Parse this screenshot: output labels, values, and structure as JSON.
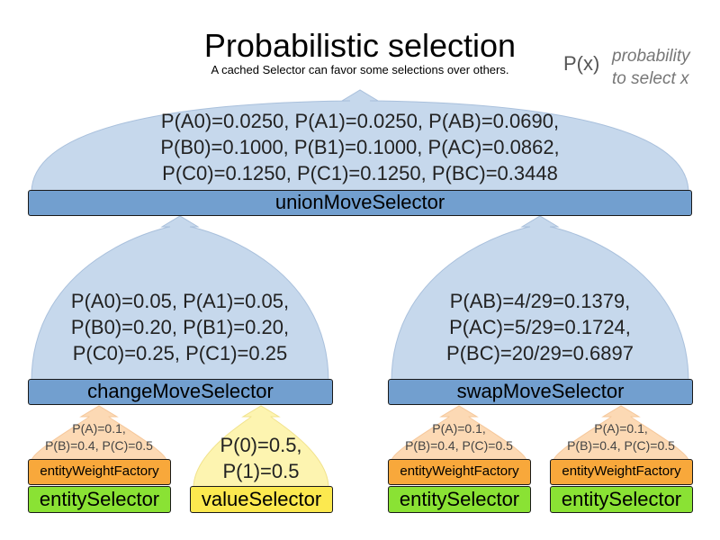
{
  "header": {
    "title": "Probabilistic selection",
    "subtitle": "A cached Selector can favor some selections over others.",
    "legend_symbol": "P(x)",
    "legend_text": [
      "probability",
      "to select x"
    ]
  },
  "colors": {
    "dome_blue": "#c6d8ec",
    "selector_blue": "#729fcf",
    "weight_factory_orange": "#f8a83b",
    "dome_orange": "#fcd9b4",
    "entity_green": "#8ae234",
    "value_yellow": "#fce94f",
    "dome_yellow": "#fdf4b0",
    "weight_value_orange": "#d2600f"
  },
  "union": {
    "label": "unionMoveSelector",
    "lines": [
      [
        "P(A0)=0.0250,",
        "P(A1)=0.0250,",
        "P(AB)=0.0690,"
      ],
      [
        "P(B0)=0.1000,",
        "P(B1)=0.1000,",
        "P(AC)=0.0862,"
      ],
      [
        "P(C0)=0.1250,",
        "P(C1)=0.1250,",
        "P(BC)=0.3448"
      ]
    ]
  },
  "change": {
    "label": "changeMoveSelector",
    "lines": [
      [
        "P(A0)=0.05,",
        "P(A1)=0.05,"
      ],
      [
        "P(B0)=0.20,",
        "P(B1)=0.20,"
      ],
      [
        "P(C0)=0.25,",
        "P(C1)=0.25"
      ]
    ]
  },
  "swap": {
    "label": "swapMoveSelector",
    "lines": [
      [
        "P(AB)=4/29=0.1379,"
      ],
      [
        "P(AC)=5/29=0.1724,"
      ],
      [
        "P(BC)=20/29=0.6897"
      ]
    ]
  },
  "entity_weights": {
    "factory_label": "entityWeightFactory",
    "selector_label": "entitySelector",
    "lines": [
      [
        "P(A)=0.1,"
      ],
      [
        "P(B)=0.4,",
        "P(C)=0.5"
      ]
    ]
  },
  "value": {
    "selector_label": "valueSelector",
    "lines": [
      [
        "P(0)=0.5,"
      ],
      [
        "P(1)=0.5"
      ]
    ]
  }
}
